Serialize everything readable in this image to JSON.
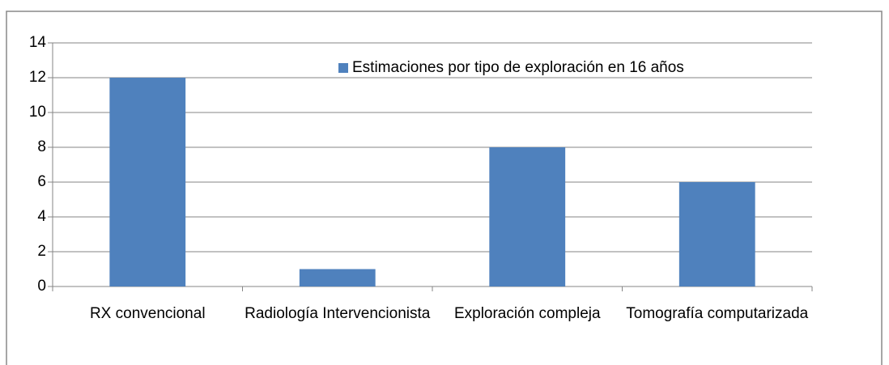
{
  "chart_data": {
    "type": "bar",
    "categories": [
      "RX convencional",
      "Radiología Intervencionista",
      "Exploración compleja",
      "Tomografía computarizada"
    ],
    "series": [
      {
        "name": "Estimaciones por tipo de exploración en 16 años",
        "color": "#4f81bd",
        "values": [
          12,
          1,
          8,
          6
        ]
      }
    ],
    "ylim": [
      0,
      14
    ],
    "yticks": [
      0,
      2,
      4,
      6,
      8,
      10,
      12,
      14
    ],
    "grid": true,
    "legend": "top-right"
  }
}
